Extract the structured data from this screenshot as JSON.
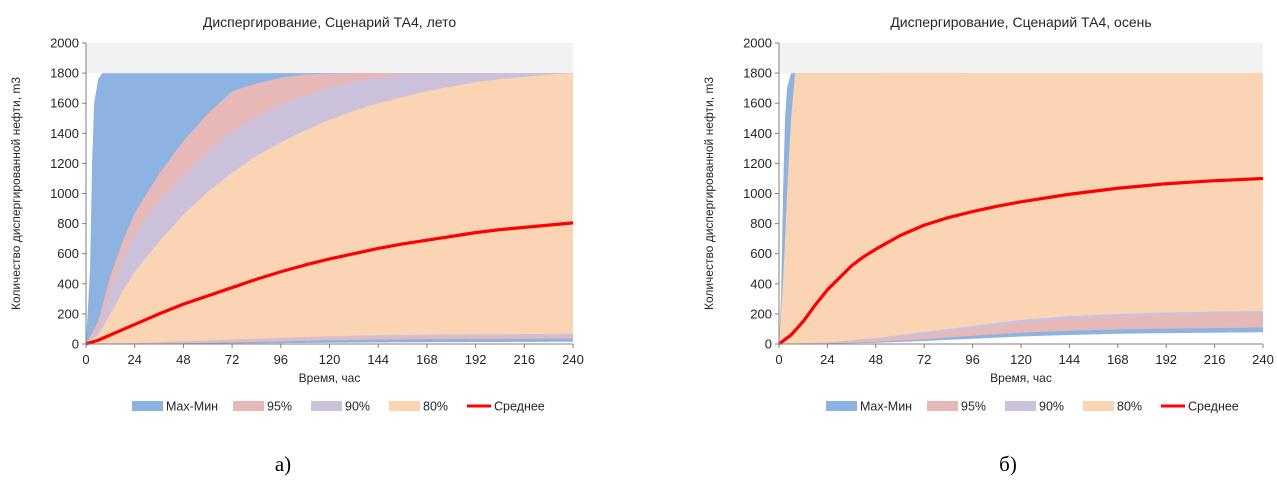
{
  "colors": {
    "maxmin": "#8DB3E2",
    "p95": "#E6B9B8",
    "p90": "#CCC1DA",
    "p80": "#FBD4B4",
    "mean": "#FF0000",
    "axis": "#808080",
    "plot_bg": "#F2F2F2"
  },
  "captions": [
    "а)",
    "б)"
  ],
  "chart_data": [
    {
      "type": "area",
      "title": "Диспергирование, Сценарий  ТА4, лето",
      "xlabel": "Время, час",
      "ylabel": "Количество  диспергированной нефти, m3",
      "xlim": [
        0,
        240
      ],
      "ylim": [
        0,
        2000
      ],
      "xticks": [
        0,
        24,
        48,
        72,
        96,
        120,
        144,
        168,
        192,
        216,
        240
      ],
      "yticks": [
        0,
        200,
        400,
        600,
        800,
        1000,
        1200,
        1400,
        1600,
        1800,
        2000
      ],
      "grid": false,
      "legend_position": "bottom",
      "ceiling": 1800,
      "series": [
        {
          "name": "Max-Мин",
          "key": "maxmin",
          "upper": {
            "x": [
              0,
              2,
              3,
              4,
              6,
              8,
              240
            ],
            "y": [
              0,
              500,
              1200,
              1600,
              1760,
              1800,
              1800
            ]
          },
          "lower": {
            "x": [
              0,
              24,
              48,
              72,
              96,
              120,
              144,
              168,
              192,
              216,
              240
            ],
            "y": [
              0,
              0,
              2,
              4,
              6,
              8,
              10,
              12,
              13,
              14,
              15
            ]
          }
        },
        {
          "name": "95%",
          "key": "p95",
          "upper": {
            "x": [
              0,
              6,
              12,
              18,
              24,
              36,
              48,
              60,
              72,
              84,
              96,
              108,
              120,
              132,
              144,
              240
            ],
            "y": [
              0,
              150,
              450,
              680,
              870,
              1130,
              1350,
              1530,
              1680,
              1730,
              1770,
              1790,
              1795,
              1800,
              1800,
              1800
            ]
          },
          "lower": {
            "x": [
              0,
              24,
              48,
              72,
              96,
              120,
              144,
              168,
              192,
              216,
              240
            ],
            "y": [
              0,
              2,
              5,
              10,
              18,
              25,
              30,
              32,
              34,
              35,
              36
            ]
          }
        },
        {
          "name": "90%",
          "key": "p90",
          "upper": {
            "x": [
              0,
              6,
              12,
              18,
              24,
              36,
              48,
              60,
              72,
              84,
              96,
              108,
              120,
              132,
              144,
              156,
              168,
              240
            ],
            "y": [
              0,
              100,
              340,
              560,
              730,
              950,
              1120,
              1280,
              1410,
              1510,
              1590,
              1650,
              1700,
              1740,
              1770,
              1790,
              1800,
              1800
            ]
          },
          "lower": {
            "x": [
              0,
              24,
              48,
              72,
              96,
              120,
              144,
              168,
              192,
              216,
              240
            ],
            "y": [
              0,
              4,
              12,
              22,
              32,
              40,
              46,
              50,
              52,
              54,
              55
            ]
          }
        },
        {
          "name": "80%",
          "key": "p80",
          "upper": {
            "x": [
              0,
              6,
              12,
              18,
              24,
              36,
              48,
              60,
              72,
              84,
              96,
              108,
              120,
              132,
              144,
              156,
              168,
              180,
              192,
              204,
              216,
              228,
              240
            ],
            "y": [
              0,
              60,
              200,
              350,
              480,
              680,
              860,
              1010,
              1140,
              1250,
              1340,
              1420,
              1490,
              1550,
              1600,
              1640,
              1680,
              1710,
              1740,
              1760,
              1775,
              1790,
              1800
            ]
          },
          "lower": {
            "x": [
              0,
              24,
              48,
              72,
              96,
              120,
              144,
              168,
              192,
              216,
              240
            ],
            "y": [
              0,
              6,
              18,
              30,
              42,
              52,
              58,
              62,
              64,
              66,
              68
            ]
          }
        },
        {
          "name": "Среднее",
          "key": "mean",
          "x": [
            0,
            6,
            12,
            24,
            36,
            48,
            60,
            72,
            84,
            96,
            108,
            120,
            132,
            144,
            156,
            168,
            180,
            192,
            204,
            216,
            228,
            240
          ],
          "y": [
            0,
            25,
            60,
            130,
            200,
            265,
            320,
            375,
            430,
            480,
            525,
            565,
            600,
            635,
            665,
            690,
            715,
            740,
            760,
            775,
            790,
            805
          ]
        }
      ]
    },
    {
      "type": "area",
      "title": "Диспергирование, Сценарий  ТА4,  осень",
      "xlabel": "Время, час",
      "ylabel": "Количество  диспергированной нефти, m3",
      "xlim": [
        0,
        240
      ],
      "ylim": [
        0,
        2000
      ],
      "xticks": [
        0,
        24,
        48,
        72,
        96,
        120,
        144,
        168,
        192,
        216,
        240
      ],
      "yticks": [
        0,
        200,
        400,
        600,
        800,
        1000,
        1200,
        1400,
        1600,
        1800,
        2000
      ],
      "grid": false,
      "legend_position": "bottom",
      "ceiling": 1800,
      "series": [
        {
          "name": "Max-Мин",
          "key": "maxmin",
          "upper": {
            "x": [
              0,
              1,
              2,
              3,
              4,
              6,
              240
            ],
            "y": [
              0,
              300,
              1000,
              1500,
              1700,
              1800,
              1800
            ]
          },
          "lower": {
            "x": [
              0,
              24,
              48,
              72,
              96,
              120,
              144,
              168,
              192,
              216,
              240
            ],
            "y": [
              0,
              2,
              8,
              20,
              35,
              50,
              60,
              68,
              72,
              75,
              78
            ]
          }
        },
        {
          "name": "95%",
          "key": "p95",
          "upper": {
            "x": [
              0,
              4,
              8,
              12,
              16,
              20,
              24,
              30,
              36,
              42,
              48,
              240
            ],
            "y": [
              0,
              350,
              800,
              1150,
              1400,
              1550,
              1650,
              1730,
              1780,
              1795,
              1800,
              1800
            ]
          },
          "lower": {
            "x": [
              0,
              24,
              48,
              72,
              96,
              120,
              144,
              168,
              192,
              216,
              240
            ],
            "y": [
              0,
              4,
              14,
              32,
              55,
              75,
              88,
              97,
              102,
              106,
              110
            ]
          }
        },
        {
          "name": "90%",
          "key": "p90",
          "upper": {
            "x": [
              0,
              4,
              8,
              12,
              16,
              20,
              24,
              30,
              36,
              42,
              48,
              60,
              72,
              84,
              96,
              240
            ],
            "y": [
              0,
              250,
              620,
              920,
              1150,
              1330,
              1460,
              1580,
              1660,
              1710,
              1740,
              1775,
              1790,
              1798,
              1800,
              1800
            ]
          },
          "lower": {
            "x": [
              0,
              24,
              48,
              72,
              96,
              120,
              144,
              168,
              192,
              216,
              240
            ],
            "y": [
              0,
              8,
              30,
              60,
              100,
              140,
              165,
              180,
              192,
              200,
              205
            ]
          }
        },
        {
          "name": "80%",
          "key": "p80",
          "upper": {
            "x": [
              0,
              2,
              4,
              6,
              8,
              240
            ],
            "y": [
              0,
              400,
              1000,
              1500,
              1800,
              1800
            ]
          },
          "lower": {
            "x": [
              0,
              24,
              48,
              72,
              96,
              120,
              144,
              168,
              192,
              216,
              240
            ],
            "y": [
              0,
              10,
              40,
              80,
              120,
              160,
              185,
              200,
              210,
              215,
              220
            ]
          }
        },
        {
          "name": "Среднее",
          "key": "mean",
          "x": [
            0,
            6,
            12,
            18,
            24,
            30,
            36,
            42,
            48,
            60,
            72,
            84,
            96,
            108,
            120,
            132,
            144,
            156,
            168,
            180,
            192,
            204,
            216,
            228,
            240
          ],
          "y": [
            0,
            60,
            150,
            260,
            360,
            440,
            520,
            580,
            630,
            720,
            790,
            840,
            880,
            915,
            945,
            970,
            995,
            1015,
            1035,
            1050,
            1065,
            1075,
            1085,
            1092,
            1100
          ]
        }
      ]
    }
  ]
}
